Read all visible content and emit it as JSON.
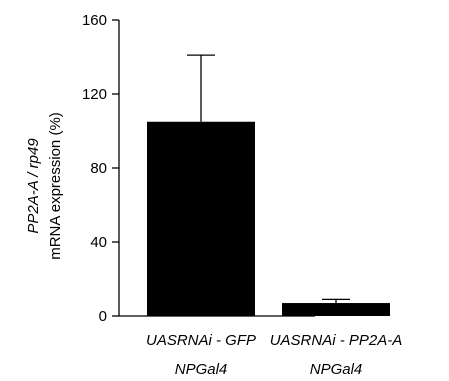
{
  "chart_data": {
    "type": "bar",
    "categories": [
      [
        "UASRNAi - GFP",
        "NPGal4"
      ],
      [
        "UASRNAi - PP2A-A",
        "NPGal4"
      ]
    ],
    "values": [
      105,
      7
    ],
    "error_upper": [
      141,
      9
    ],
    "ylabel_line1": "PP2A-A / rp49",
    "ylabel_line2": "mRNA expression (%)",
    "ylim": [
      0,
      160
    ],
    "yticks": [
      "0",
      "40",
      "80",
      "120",
      "160"
    ],
    "bar_color": "#000000",
    "grid": false
  }
}
